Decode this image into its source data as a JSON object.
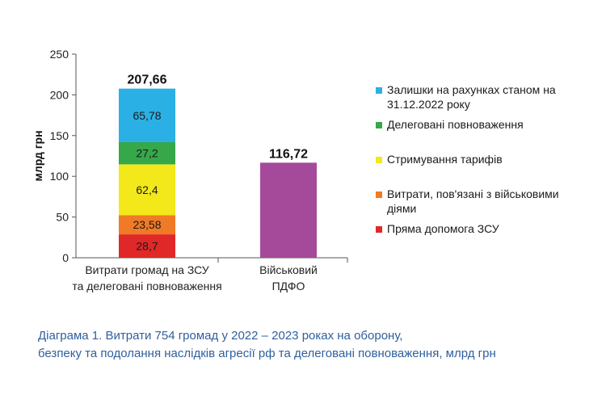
{
  "chart_data": {
    "type": "bar",
    "stacked": true,
    "ylabel": "млрд грн",
    "ylim": [
      0,
      250
    ],
    "yticks": [
      0,
      50,
      100,
      150,
      200,
      250
    ],
    "categories": [
      [
        "Витрати громад на ЗСУ",
        "та делеговані повноваження"
      ],
      [
        "Військовий",
        "ПДФО"
      ]
    ],
    "totals": [
      "207,66",
      "116,72"
    ],
    "series": [
      {
        "name": "Пряма допомога ЗСУ",
        "color": "#e02828",
        "values": [
          28.7,
          0
        ],
        "labels": [
          "28,7",
          ""
        ]
      },
      {
        "name": "Витрати, пов'язані з військовими діями",
        "color": "#f07a25",
        "values": [
          23.58,
          0
        ],
        "labels": [
          "23,58",
          ""
        ]
      },
      {
        "name": "Стримування тарифів",
        "color": "#f2e81a",
        "values": [
          62.4,
          0
        ],
        "labels": [
          "62,4",
          ""
        ]
      },
      {
        "name": "Делеговані повноваження",
        "color": "#36a84a",
        "values": [
          27.2,
          0
        ],
        "labels": [
          "27,2",
          ""
        ]
      },
      {
        "name": "Залишки на рахунках станом на 31.12.2022 року",
        "color": "#2bb0e6",
        "values": [
          65.78,
          0
        ],
        "labels": [
          "65,78",
          ""
        ]
      },
      {
        "name": "",
        "color": "#a54a9a",
        "values": [
          0,
          116.72
        ],
        "labels": [
          "",
          ""
        ]
      }
    ],
    "legend": [
      {
        "lines": [
          "Залишки на рахунках станом на",
          "31.12.2022 року"
        ],
        "color": "#2bb0e6"
      },
      {
        "lines": [
          "Делеговані повноваження"
        ],
        "color": "#36a84a"
      },
      {
        "lines": [
          "Стримування тарифів"
        ],
        "color": "#f2e81a"
      },
      {
        "lines": [
          "Витрати, пов'язані з військовими",
          "діями"
        ],
        "color": "#f07a25"
      },
      {
        "lines": [
          "Пряма допомога ЗСУ"
        ],
        "color": "#e02828"
      }
    ],
    "legend_position": "right"
  },
  "caption": {
    "line1": "Діаграма 1.  Витрати 754 громад у 2022 – 2023 роках на оборону,",
    "line2": "безпеку та подолання наслідків агресії рф та делеговані повноваження, млрд грн"
  }
}
